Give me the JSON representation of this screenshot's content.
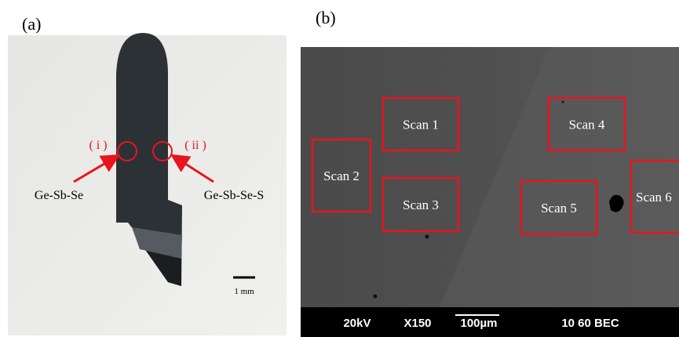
{
  "panel_a": {
    "label": "(a)",
    "marker_i": "( i )",
    "marker_ii": "( ii )",
    "left_region": "Ge-Sb-Se",
    "right_region": "Ge-Sb-Se-S",
    "scale_bar": "1 mm"
  },
  "panel_b": {
    "label": "(b)",
    "scans": [
      "Scan 1",
      "Scan 2",
      "Scan 3",
      "Scan 4",
      "Scan 5",
      "Scan 6"
    ],
    "info_bar": {
      "voltage": "20kV",
      "magnification": "X150",
      "scale_bar": "100µm",
      "settings": "10 60 BEC"
    }
  }
}
